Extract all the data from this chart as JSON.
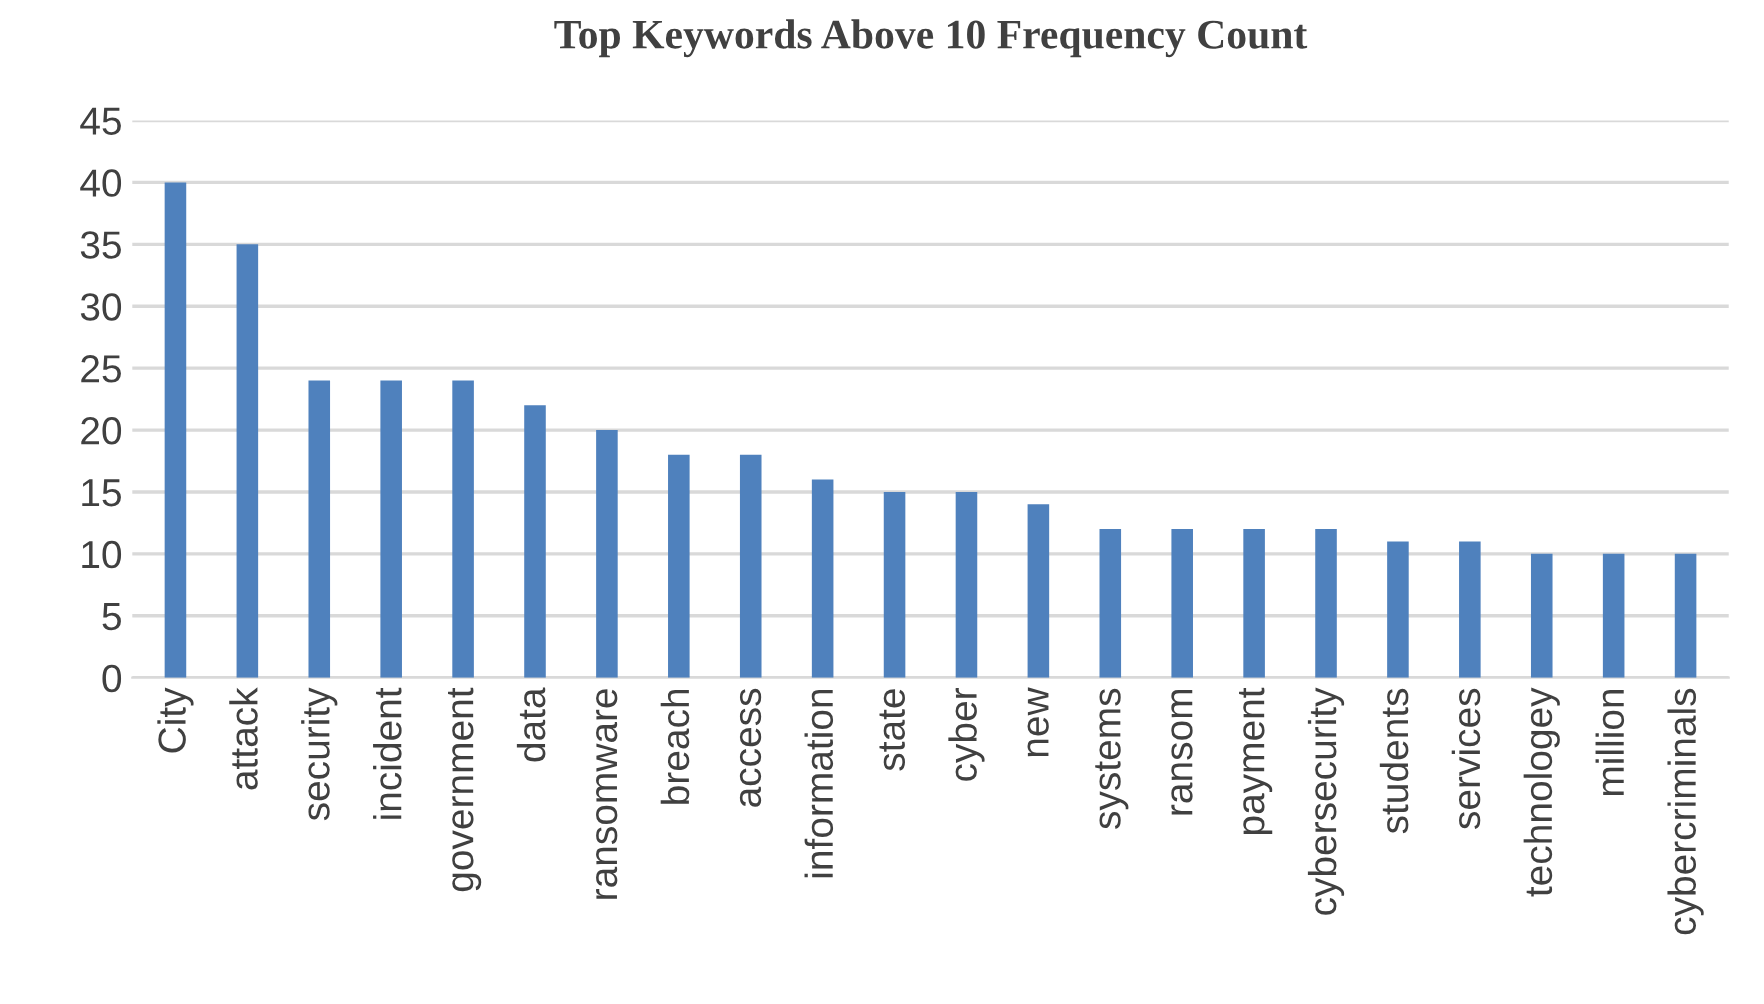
{
  "chart_data": {
    "type": "bar",
    "title": "Top Keywords Above 10 Frequency Count",
    "categories": [
      "City",
      "attack",
      "security",
      "incident",
      "government",
      "data",
      "ransomware",
      "breach",
      "access",
      "information",
      "state",
      "cyber",
      "new",
      "systems",
      "ransom",
      "payment",
      "cybersecurity",
      "students",
      "services",
      "technologey",
      "million",
      "cybercriminals"
    ],
    "values": [
      40,
      35,
      24,
      24,
      24,
      22,
      20,
      18,
      18,
      16,
      15,
      15,
      14,
      12,
      12,
      12,
      12,
      11,
      11,
      10,
      10,
      10
    ],
    "color": "#4f81bd",
    "ylim": [
      0,
      45
    ],
    "yticks": [
      0,
      5,
      10,
      15,
      20,
      25,
      30,
      35,
      40,
      45
    ],
    "grid": "y",
    "legend": false
  }
}
